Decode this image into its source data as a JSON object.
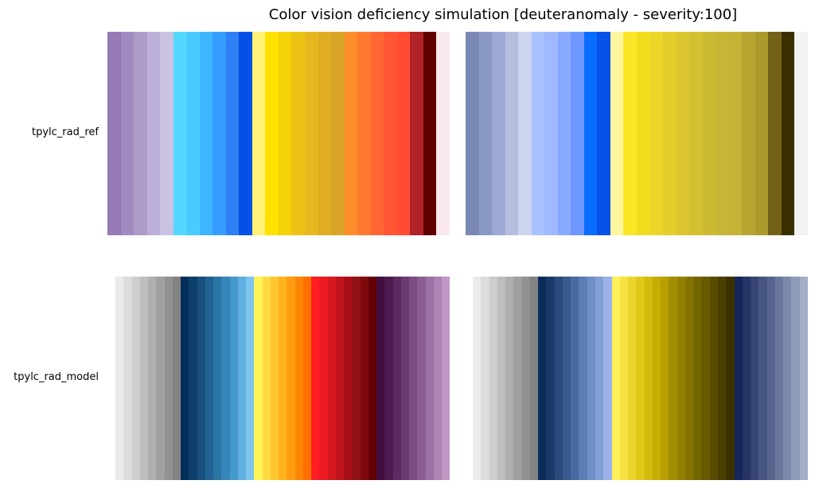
{
  "figure": {
    "title": "Color vision deficiency simulation [deuteranomaly - severity:100]"
  },
  "chart_data": [
    {
      "type": "heatmap",
      "row_label": "tpylc_rad_ref",
      "variant": "original",
      "colors": [
        "#957ab5",
        "#a08bc0",
        "#ad9bc8",
        "#bdb0d8",
        "#cac2e3",
        "#55d8ff",
        "#4acbff",
        "#3eb5ff",
        "#359dff",
        "#2f80f5",
        "#0650e6",
        "#fff176",
        "#ffe200",
        "#f6d20a",
        "#ecc315",
        "#e6b71f",
        "#e0ac22",
        "#d9a526",
        "#ff8d2b",
        "#ff7a2f",
        "#ff6633",
        "#ff5533",
        "#ff4c33",
        "#b02226",
        "#600000",
        "#f9e9ec"
      ]
    },
    {
      "type": "heatmap",
      "row_label": "tpylc_rad_ref",
      "variant": "deuteranomaly",
      "colors": [
        "#7a89b4",
        "#8a99c4",
        "#9eaad3",
        "#b4bfe0",
        "#ccd4f0",
        "#a9c1ff",
        "#9fb8ff",
        "#89a8ff",
        "#6e98ff",
        "#086cff",
        "#0651e8",
        "#fff59e",
        "#fae626",
        "#f2dc1e",
        "#ecd627",
        "#e2cd2b",
        "#dbc630",
        "#d5c031",
        "#cdba33",
        "#c8b535",
        "#c5b234",
        "#b9a531",
        "#ab9a2c",
        "#736118",
        "#3a2f00",
        "#f2f2f2"
      ]
    },
    {
      "type": "heatmap",
      "row_label": "tpylc_rad_model",
      "variant": "original",
      "colors": [
        "#ebebeb",
        "#dcdcdc",
        "#cdcdcd",
        "#bebebe",
        "#afafaf",
        "#a0a0a0",
        "#919191",
        "#828282",
        "#022f59",
        "#0c3f6b",
        "#17507f",
        "#216293",
        "#2b74a6",
        "#3686ba",
        "#4499cc",
        "#5fb0e0",
        "#7dc4ef",
        "#fff358",
        "#ffdb42",
        "#ffc62f",
        "#ffb11e",
        "#ff9c10",
        "#ff8605",
        "#ff6f00",
        "#ff1d24",
        "#ec1b22",
        "#d61820",
        "#c1141c",
        "#a90f18",
        "#921114",
        "#7e0a0e",
        "#620005",
        "#3f0d3f",
        "#4e1b50",
        "#5d2a61",
        "#6b3a71",
        "#7b4b82",
        "#8b5d93",
        "#9b70a4",
        "#ac83b4",
        "#bf98c4"
      ]
    },
    {
      "type": "heatmap",
      "row_label": "tpylc_rad_model",
      "variant": "deuteranomaly",
      "colors": [
        "#ebebeb",
        "#dcdcdc",
        "#cdcdcd",
        "#bebebe",
        "#afafaf",
        "#a0a0a0",
        "#919191",
        "#828282",
        "#0a2c59",
        "#1b3a6a",
        "#2a4a7c",
        "#395a8f",
        "#4a6ba2",
        "#5b7cb4",
        "#6d8ec6",
        "#829fd6",
        "#9bb3e8",
        "#fff15a",
        "#f6e33f",
        "#ecd52c",
        "#e0c81a",
        "#d4bb0c",
        "#c6ad04",
        "#b9a000",
        "#a38d00",
        "#948000",
        "#857300",
        "#766600",
        "#675900",
        "#584c00",
        "#4a3f00",
        "#3a3100",
        "#16255a",
        "#263566",
        "#364573",
        "#475681",
        "#58668f",
        "#6a789d",
        "#7c8aab",
        "#8f9cb9",
        "#a3afc7"
      ]
    }
  ]
}
